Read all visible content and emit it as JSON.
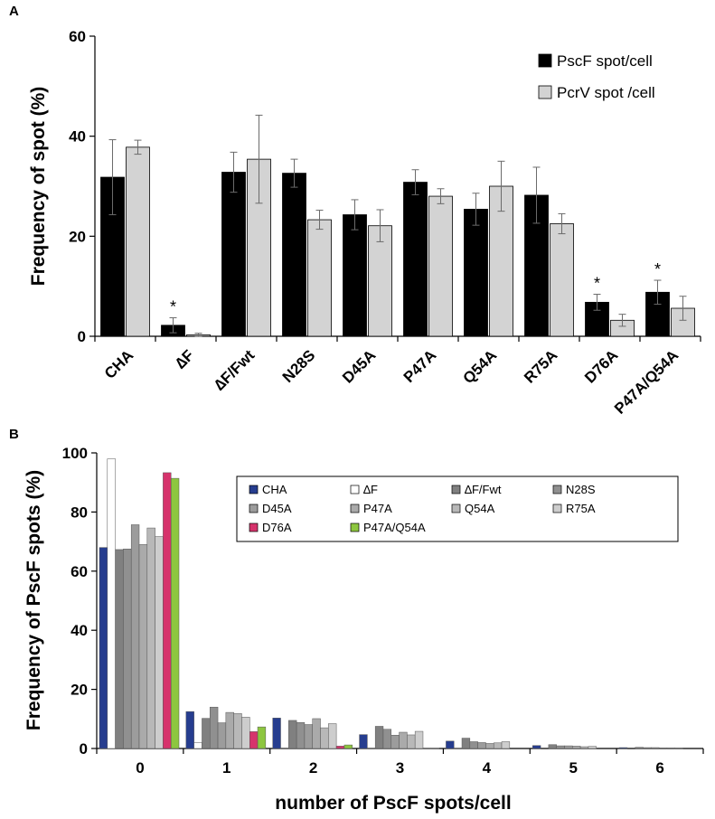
{
  "panels": {
    "a": "A",
    "b": "B"
  },
  "chart_data": [
    {
      "type": "bar",
      "panel": "A",
      "ylabel": "Frequency of spot (%)",
      "xlabel": "",
      "ylim": [
        0,
        60
      ],
      "yticks": [
        0,
        20,
        40,
        60
      ],
      "categories": [
        "CHA",
        "∆F",
        "∆F/Fwt",
        "N28S",
        "D45A",
        "P47A",
        "Q54A",
        "R75A",
        "D76A",
        "P47A/Q54A"
      ],
      "series": [
        {
          "name": "PscF spot/cell",
          "color": "#000000",
          "values": [
            31.8,
            2.2,
            32.8,
            32.6,
            24.3,
            30.8,
            25.4,
            28.2,
            6.8,
            8.8
          ],
          "errors": [
            7.5,
            1.5,
            4.0,
            2.8,
            3.0,
            2.5,
            3.2,
            5.6,
            1.6,
            2.4
          ]
        },
        {
          "name": "PcrV spot /cell",
          "color": "#d3d3d3",
          "values": [
            37.8,
            0.3,
            35.4,
            23.3,
            22.1,
            28.0,
            30.0,
            22.5,
            3.2,
            5.6
          ],
          "errors": [
            1.4,
            0.3,
            8.8,
            1.9,
            3.2,
            1.5,
            5.0,
            2.0,
            1.2,
            2.4
          ]
        }
      ],
      "significance": [
        "",
        "*",
        "",
        "",
        "",
        "",
        "",
        "",
        "*",
        "*"
      ],
      "legend_position": "top-right"
    },
    {
      "type": "bar",
      "panel": "B",
      "ylabel": "Frequency of PscF spots (%)",
      "xlabel": "number of PscF spots/cell",
      "ylim": [
        0,
        100
      ],
      "yticks": [
        0,
        20,
        40,
        60,
        80,
        100
      ],
      "categories": [
        "0",
        "1",
        "2",
        "3",
        "4",
        "5",
        "6"
      ],
      "series": [
        {
          "name": "CHA",
          "color": "#263d8f",
          "values": [
            68,
            12.5,
            10.3,
            4.7,
            2.5,
            1.0,
            0.3
          ]
        },
        {
          "name": "∆F",
          "color": "#ffffff",
          "values": [
            98,
            2.0,
            0.2,
            0.1,
            0.1,
            0,
            0
          ]
        },
        {
          "name": "∆F/Fwt",
          "color": "#808080",
          "values": [
            67.3,
            10.2,
            9.5,
            7.5,
            3.5,
            1.3,
            0.4
          ]
        },
        {
          "name": "N28S",
          "color": "#909090",
          "values": [
            67.5,
            14.0,
            8.8,
            6.5,
            2.3,
            0.9,
            0.3
          ]
        },
        {
          "name": "D45A",
          "color": "#9c9c9c",
          "values": [
            75.7,
            8.7,
            8.1,
            4.5,
            2.0,
            0.9,
            0.3
          ]
        },
        {
          "name": "P47A",
          "color": "#aaaaaa",
          "values": [
            69.0,
            12.2,
            10.1,
            5.5,
            1.7,
            0.8,
            0.2
          ]
        },
        {
          "name": "Q54A",
          "color": "#b8b8b8",
          "values": [
            74.6,
            11.8,
            7.0,
            4.6,
            1.9,
            0.6,
            0.2
          ]
        },
        {
          "name": "R75A",
          "color": "#cdcdcd",
          "values": [
            71.7,
            10.6,
            8.4,
            5.8,
            2.3,
            0.7,
            0.2
          ]
        },
        {
          "name": "D76A",
          "color": "#d6336c",
          "values": [
            93.3,
            5.7,
            0.8,
            0.1,
            0,
            0,
            0
          ]
        },
        {
          "name": "P47A/Q54A",
          "color": "#8dc63f",
          "values": [
            91.4,
            7.3,
            1.2,
            0.1,
            0,
            0,
            0
          ]
        }
      ],
      "legend_position": "top-right"
    }
  ]
}
